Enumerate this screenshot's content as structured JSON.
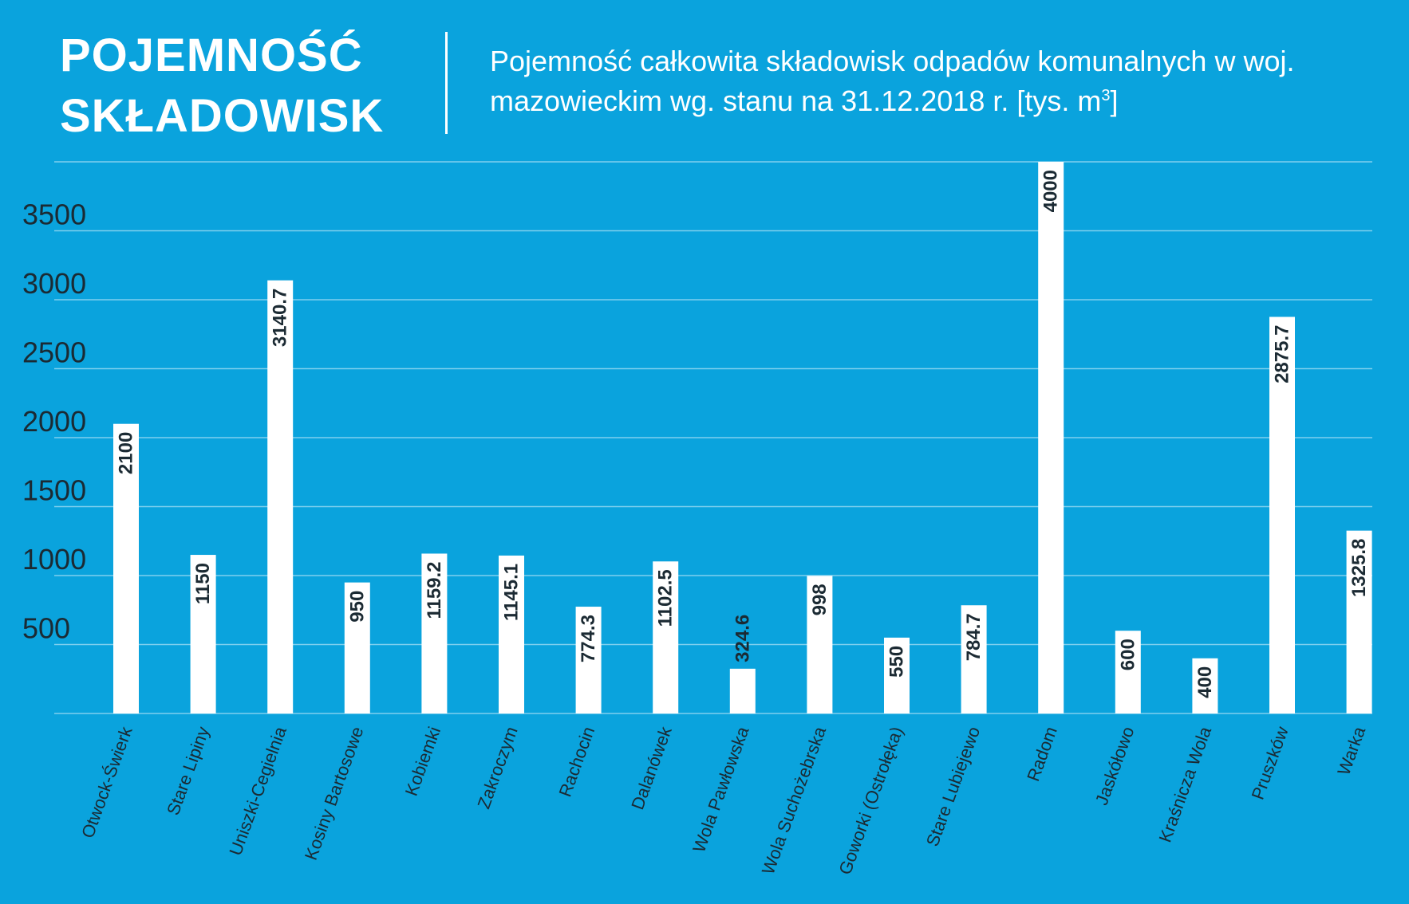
{
  "header": {
    "title_line1": "POJEMNOŚĆ",
    "title_line2": "SKŁADOWISK",
    "subtitle_main": "Pojemność całkowita składowisk odpadów komunalnych w woj. mazowieckim wg. stanu na 31.12.2018 r. [tys. m",
    "subtitle_sup": "3",
    "subtitle_end": "]"
  },
  "colors": {
    "background": "#0aa3dd",
    "bar": "#ffffff",
    "grid": "#7fd0ee",
    "text": "#1b2a33",
    "heading": "#ffffff"
  },
  "chart_data": {
    "type": "bar",
    "categories": [
      "Otwock-Świerk",
      "Stare Lipiny",
      "Uniszki-Cegielnia",
      "Kosiny Bartosowe",
      "Kobiemki",
      "Zakroczym",
      "Rachocin",
      "Dalanówek",
      "Wola Pawłowska",
      "Wola Suchożebrska",
      "Goworki (Ostrołęka)",
      "Stare Lubiejewo",
      "Radom",
      "Jaskółowo",
      "Kraśnicza Wola",
      "Pruszków",
      "Warka"
    ],
    "values": [
      2100,
      1150,
      3140.7,
      950,
      1159.2,
      1145.1,
      774.3,
      1102.5,
      324.6,
      998,
      550,
      784.7,
      4000,
      600,
      400,
      2875.7,
      1325.8
    ],
    "value_labels": [
      "2100",
      "1150",
      "3140.7",
      "950",
      "1159.2",
      "1145.1",
      "774.3",
      "1102.5",
      "324.6",
      "998",
      "550",
      "784.7",
      "4000",
      "600",
      "400",
      "2875.7",
      "1325.8"
    ],
    "yticks": [
      500,
      1000,
      1500,
      2000,
      2500,
      3000,
      3500
    ],
    "ylim": [
      0,
      4000
    ],
    "grid": true,
    "xlabel": "",
    "ylabel": ""
  }
}
